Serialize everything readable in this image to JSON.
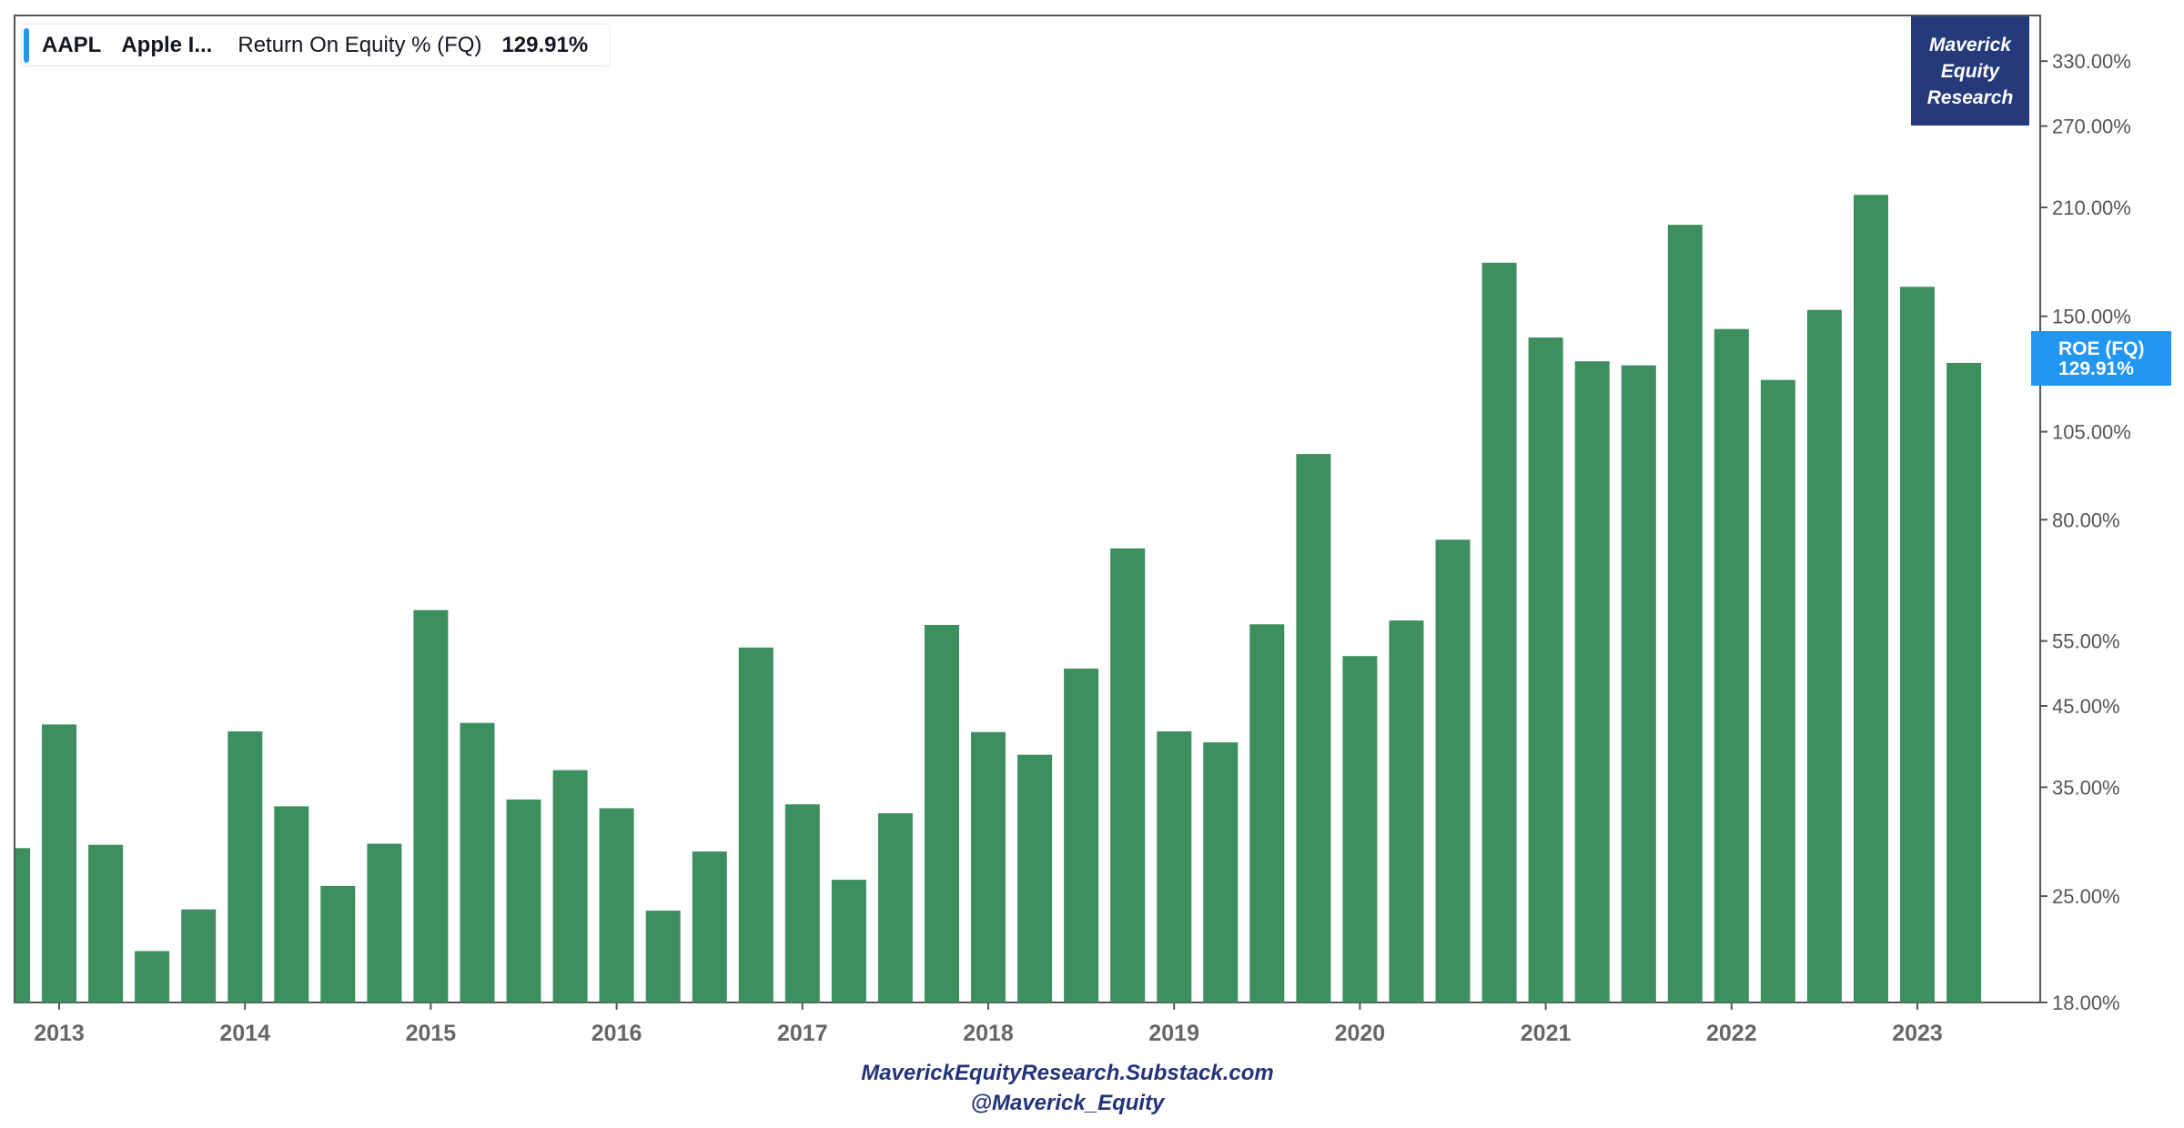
{
  "legend": {
    "ticker": "AAPL",
    "company": "Apple I...",
    "metric": "Return On Equity % (FQ)",
    "value": "129.91%"
  },
  "logo": {
    "line1": "Maverick",
    "line2": "Equity",
    "line3": "Research"
  },
  "price_badge": {
    "label": "ROE (FQ)",
    "value": "129.91%"
  },
  "footer": {
    "line1": "MaverickEquityResearch.Substack.com",
    "line2": "@Maverick_Equity"
  },
  "colors": {
    "bar": "#3d8f5f",
    "accent": "#2196f3",
    "logo_bg": "#243a7a",
    "axis_text": "#555555",
    "year_text": "#666666",
    "frame": "#555555"
  },
  "chart_data": {
    "type": "bar",
    "scale": "log",
    "ylim": [
      18,
      380
    ],
    "y_ticks": [
      18,
      25,
      35,
      45,
      55,
      80,
      105,
      150,
      210,
      270,
      330
    ],
    "y_tick_labels": [
      "18.00%",
      "25.00%",
      "35.00%",
      "45.00%",
      "55.00%",
      "80.00%",
      "105.00%",
      "150.00%",
      "210.00%",
      "270.00%",
      "330.00%"
    ],
    "x_tick_labels": [
      "2013",
      "2014",
      "2015",
      "2016",
      "2017",
      "2018",
      "2019",
      "2020",
      "2021",
      "2022",
      "2023"
    ],
    "series": [
      {
        "values": [
          29.0,
          42.5,
          29.3,
          21.1,
          24.0,
          41.6,
          33.0,
          25.8,
          29.4,
          60.5,
          42.7,
          33.7,
          36.9,
          32.8,
          23.9,
          28.7,
          53.9,
          33.2,
          26.3,
          32.3,
          57.8,
          41.5,
          38.7,
          50.5,
          73.2,
          41.6,
          40.2,
          57.9,
          98.0,
          52.5,
          58.6,
          75.2,
          177.0,
          140.5,
          130.5,
          128.9,
          199.0,
          144.2,
          123.2,
          153.0,
          218.3,
          164.3,
          129.9
        ]
      }
    ],
    "last_value_label": "129.91%"
  }
}
